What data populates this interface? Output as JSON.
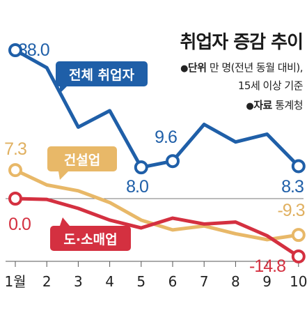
{
  "title": "취업자 증감 추이",
  "notes": {
    "unit_label": "단위",
    "unit_text": "만 명(전년 동월 대비),",
    "unit_text2": "15세 이상 기준",
    "source_label": "자료",
    "source_text": "통계청",
    "bullet": "●"
  },
  "chart_data": {
    "type": "line",
    "x": [
      "1월",
      "2",
      "3",
      "4",
      "5",
      "6",
      "7",
      "8",
      "9",
      "10"
    ],
    "ylim": [
      -20,
      45
    ],
    "grid": false,
    "zero_line": true,
    "series": [
      {
        "name": "전체 취업자",
        "color": "#1f5fa8",
        "values": [
          38.0,
          33.5,
          18.3,
          22.5,
          8.0,
          9.6,
          19.0,
          14.5,
          16.5,
          8.3
        ],
        "labeled_points": [
          {
            "index": 0,
            "text": "38.0"
          },
          {
            "index": 4,
            "text": "8.0"
          },
          {
            "index": 5,
            "text": "9.6"
          },
          {
            "index": 9,
            "text": "8.3"
          }
        ]
      },
      {
        "name": "건설업",
        "color": "#e8b868",
        "values": [
          7.3,
          3.5,
          2.0,
          -1.0,
          -5.5,
          -8.0,
          -7.0,
          -9.0,
          -10.5,
          -9.3
        ],
        "labeled_points": [
          {
            "index": 0,
            "text": "7.3"
          },
          {
            "index": 9,
            "text": "-9.3"
          }
        ]
      },
      {
        "name": "도·소매업",
        "color": "#d43040",
        "values": [
          0.0,
          -0.2,
          -2.5,
          -5.5,
          -7.5,
          -5.0,
          -6.5,
          -6.0,
          -9.5,
          -14.8
        ],
        "labeled_points": [
          {
            "index": 0,
            "text": "0.0"
          },
          {
            "index": 9,
            "text": "-14.8"
          }
        ]
      }
    ]
  }
}
